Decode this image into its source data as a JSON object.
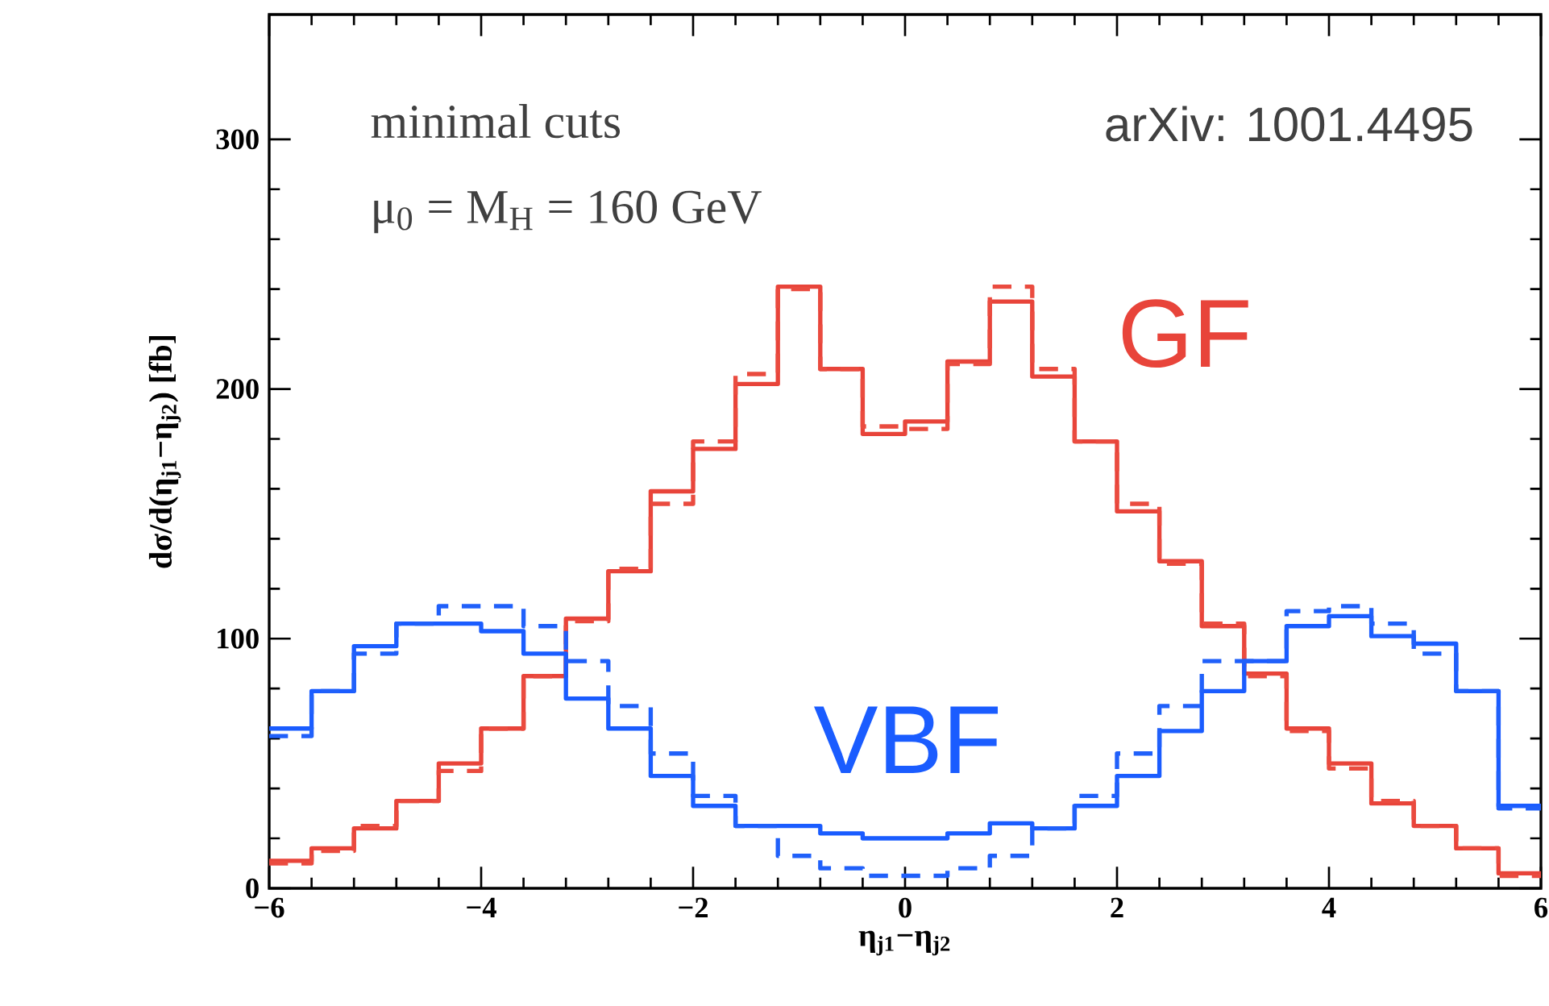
{
  "chart_data": {
    "type": "histogram",
    "xlabel": "η$_{j1}$−η$_{j2}$",
    "ylabel": "dσ/d(η$_{j1}$−η$_{j2}$) [fb]",
    "annotations": [
      "minimal cuts",
      "μ$_{0}$ = M$_{H}$ = 160 GeV",
      "arXiv: 1001.4495"
    ],
    "bins": [
      -6,
      -5.6,
      -5.2,
      -4.8,
      -4.4,
      -4,
      -3.6,
      -3.2,
      -2.8,
      -2.4,
      -2,
      -1.6,
      -1.2,
      -0.8,
      -0.4,
      0,
      0.4,
      0.8,
      1.2,
      1.6,
      2,
      2.4,
      2.8,
      3.2,
      3.6,
      4,
      4.4,
      4.8,
      5.2,
      5.6,
      6
    ],
    "series": [
      {
        "name": "GF",
        "color": "#e8443a",
        "line_style": "solid",
        "values": [
          11,
          16,
          24,
          35,
          50,
          64,
          85,
          108,
          127,
          159,
          176,
          202,
          241,
          208,
          182,
          187,
          211,
          235,
          205,
          179,
          151,
          131,
          105,
          86,
          64,
          50,
          34,
          25,
          16,
          6
        ]
      },
      {
        "color": "#ea4b3f",
        "line_style": "dashed",
        "values": [
          10,
          15,
          25,
          35,
          47,
          64,
          85,
          107,
          128,
          154,
          179,
          206,
          240,
          208,
          185,
          184,
          210,
          241,
          208,
          179,
          154,
          130,
          106,
          85,
          63,
          48,
          35,
          25,
          16,
          5
        ]
      },
      {
        "name": "VBF",
        "color": "#1a5cff",
        "line_style": "solid",
        "values": [
          64,
          79,
          97,
          106,
          106,
          103,
          94,
          76,
          64,
          45,
          33,
          25,
          25,
          22,
          20,
          20,
          22,
          26,
          24,
          33,
          45,
          63,
          79,
          91,
          105,
          109,
          101,
          98,
          79,
          33
        ]
      },
      {
        "color": "#2060fa",
        "line_style": "dashed",
        "values": [
          61,
          79,
          94,
          106,
          113,
          113,
          105,
          91,
          73,
          54,
          37,
          25,
          13,
          8,
          5,
          5,
          8,
          13,
          24,
          37,
          54,
          73,
          91,
          91,
          111,
          113,
          106,
          94,
          79,
          32
        ]
      }
    ],
    "xlim": [
      -6,
      6
    ],
    "ylim": [
      0,
      350
    ],
    "xticks": [
      {
        "value": -6,
        "label": "−6"
      },
      {
        "value": -4,
        "label": "−4"
      },
      {
        "value": -2,
        "label": "−2"
      },
      0,
      2,
      4,
      6
    ],
    "yticks": [
      0,
      100,
      200,
      300
    ],
    "grid": false
  }
}
